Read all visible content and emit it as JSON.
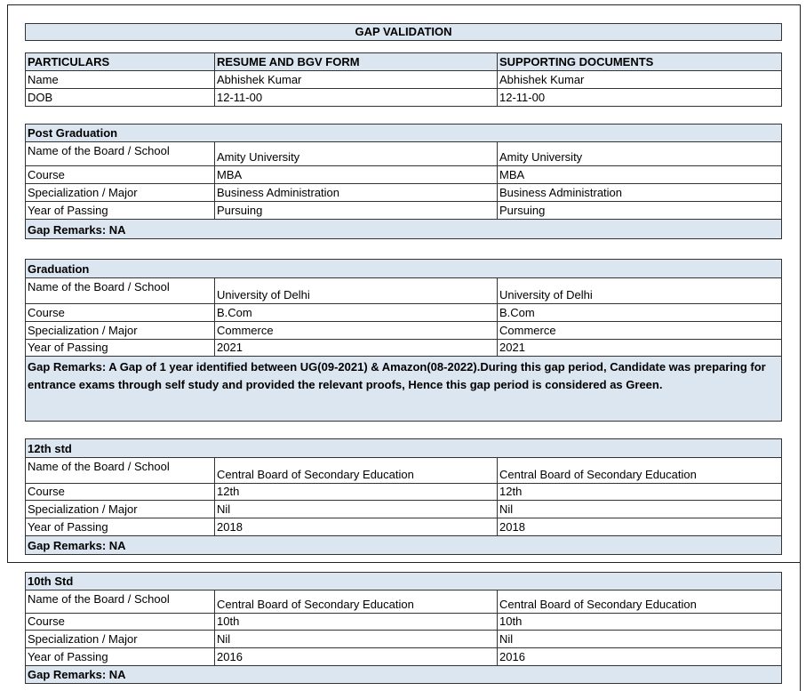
{
  "title": "GAP VALIDATION",
  "header": {
    "columns": [
      "PARTICULARS",
      "RESUME AND BGV FORM",
      "SUPPORTING DOCUMENTS"
    ],
    "rows": [
      [
        "Name",
        "Abhishek Kumar",
        "Abhishek Kumar"
      ],
      [
        "DOB",
        "12-11-00",
        "12-11-00"
      ]
    ]
  },
  "sections": [
    {
      "heading": "Post Graduation",
      "rows": [
        [
          "Name of the Board / School",
          "Amity University",
          "Amity University"
        ],
        [
          "Course",
          "MBA",
          "MBA"
        ],
        [
          "Specialization / Major",
          "Business Administration",
          "Business Administration"
        ],
        [
          "Year of Passing",
          "Pursuing",
          "Pursuing"
        ]
      ],
      "remarks": "Gap Remarks: NA"
    },
    {
      "heading": "Graduation",
      "rows": [
        [
          "Name of the Board / School",
          "University of Delhi",
          "University of Delhi"
        ],
        [
          "Course",
          "B.Com",
          "B.Com"
        ],
        [
          "Specialization / Major",
          "Commerce",
          "Commerce"
        ],
        [
          "Year of Passing",
          "2021",
          "2021"
        ]
      ],
      "remarks": "Gap Remarks: A Gap of 1 year identified between UG(09-2021) & Amazon(08-2022).During this gap period, Candidate was preparing for entrance exams through self study and provided the relevant proofs, Hence this gap period is considered as Green."
    },
    {
      "heading": "12th std",
      "rows": [
        [
          "Name of the Board / School",
          "Central Board of Secondary Education",
          "Central Board of Secondary Education"
        ],
        [
          "Course",
          "12th",
          "12th"
        ],
        [
          "Specialization / Major",
          "Nil",
          "Nil"
        ],
        [
          "Year of Passing",
          "2018",
          "2018"
        ]
      ],
      "remarks": "Gap Remarks: NA"
    },
    {
      "heading": "10th Std",
      "rows": [
        [
          "Name of the Board / School",
          "Central Board of Secondary Education",
          "Central Board of Secondary Education"
        ],
        [
          "Course",
          "10th",
          "10th"
        ],
        [
          "Specialization / Major",
          "Nil",
          "Nil"
        ],
        [
          "Year of Passing",
          "2016",
          "2016"
        ]
      ],
      "remarks": "Gap Remarks: NA"
    }
  ]
}
